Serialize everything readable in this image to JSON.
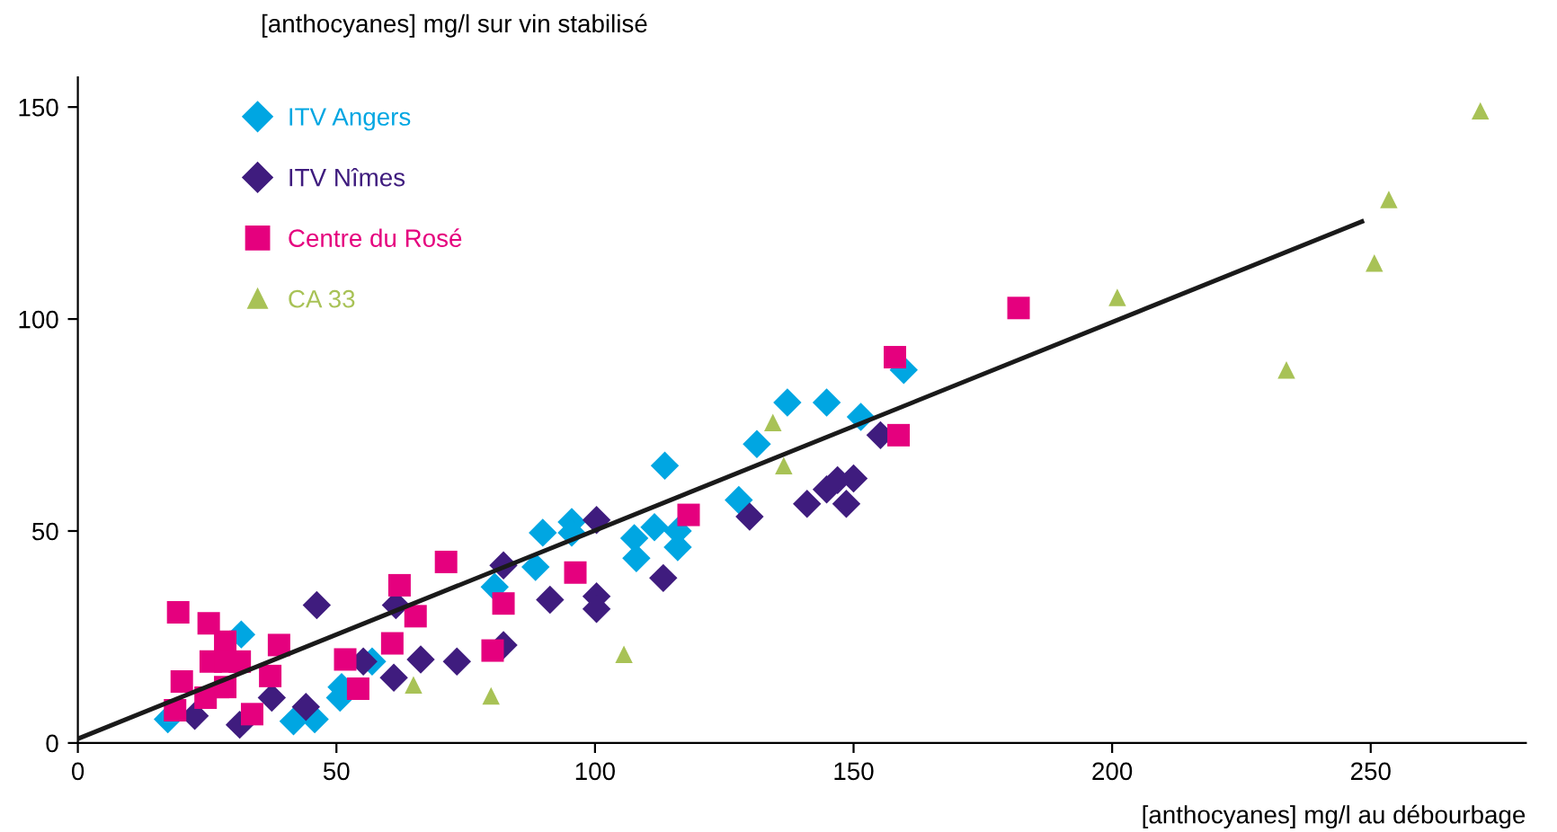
{
  "chart_data": {
    "type": "scatter",
    "xlabel": "[anthocyanes] mg/l au débourbage",
    "ylabel": "[anthocyanes] mg/l sur vin stabilisé",
    "xlim": [
      0,
      280
    ],
    "ylim": [
      0,
      157
    ],
    "xticks": [
      0,
      50,
      100,
      150,
      200,
      250
    ],
    "yticks": [
      0,
      50,
      100,
      150
    ],
    "grid": false,
    "legend": "top left",
    "series": [
      {
        "name": "ITV Angers",
        "color": "#00a6e2",
        "marker": "diamond",
        "x": [
          17.4,
          31.6,
          41.7,
          45.8,
          50.7,
          51.0,
          56.9,
          80.6,
          88.5,
          89.9,
          95.5,
          95.5,
          107.6,
          108.0,
          111.5,
          116.0,
          116.0,
          113.5,
          127.8,
          131.3,
          137.2,
          144.8,
          151.4,
          159.7
        ],
        "values": [
          5.6,
          25.6,
          5.1,
          5.6,
          10.7,
          13.2,
          19.2,
          36.8,
          41.5,
          49.6,
          52.1,
          49.6,
          48.3,
          43.6,
          50.9,
          50.0,
          46.2,
          65.4,
          57.3,
          70.5,
          80.3,
          80.3,
          76.9,
          88.0
        ]
      },
      {
        "name": "ITV Nîmes",
        "color": "#3f1c7e",
        "marker": "diamond",
        "x": [
          22.6,
          31.3,
          37.5,
          44.1,
          46.2,
          55.2,
          61.1,
          61.5,
          64.2,
          66.3,
          73.3,
          82.3,
          82.3,
          91.3,
          100.3,
          100.3,
          100.3,
          113.2,
          129.9,
          141.0,
          144.8,
          146.9,
          150.0,
          148.6,
          155.2
        ],
        "values": [
          6.4,
          4.3,
          10.7,
          8.5,
          32.5,
          19.2,
          15.4,
          32.5,
          null,
          19.7,
          19.2,
          23.1,
          41.9,
          33.8,
          52.6,
          34.6,
          31.6,
          38.9,
          53.4,
          56.4,
          59.8,
          62.0,
          62.4,
          56.4,
          72.6
        ]
      },
      {
        "name": "Centre du Rosé",
        "color": "#e5007e",
        "marker": "square",
        "x": [
          19.4,
          25.3,
          28.5,
          25.7,
          28.5,
          31.3,
          38.9,
          20.1,
          24.7,
          28.5,
          37.2,
          18.8,
          33.7,
          51.7,
          54.2,
          60.8,
          62.2,
          65.3,
          71.2,
          82.3,
          80.2,
          96.2,
          118.1,
          158.0,
          158.7,
          181.9
        ],
        "values": [
          30.8,
          28.2,
          23.9,
          19.2,
          19.2,
          19.2,
          23.1,
          14.5,
          10.7,
          13.2,
          15.8,
          7.7,
          6.8,
          19.7,
          12.8,
          23.5,
          37.2,
          29.9,
          42.7,
          32.9,
          21.8,
          40.2,
          53.8,
          91.0,
          72.6,
          102.6
        ]
      },
      {
        "name": "CA 33",
        "color": "#a8c256",
        "marker": "triangle",
        "x": [
          64.9,
          79.9,
          105.6,
          134.4,
          136.5,
          201.0,
          233.7,
          250.7,
          253.5,
          271.2
        ],
        "values": [
          13.7,
          11.1,
          20.9,
          75.6,
          65.4,
          105.1,
          88.0,
          113.2,
          128.2,
          149.1
        ]
      },
      {
        "type": "line",
        "color": "#1a1a1a",
        "marker": "none",
        "line_style": "solid",
        "x": [
          0,
          248.3
        ],
        "values": [
          1,
          123
        ]
      }
    ]
  }
}
